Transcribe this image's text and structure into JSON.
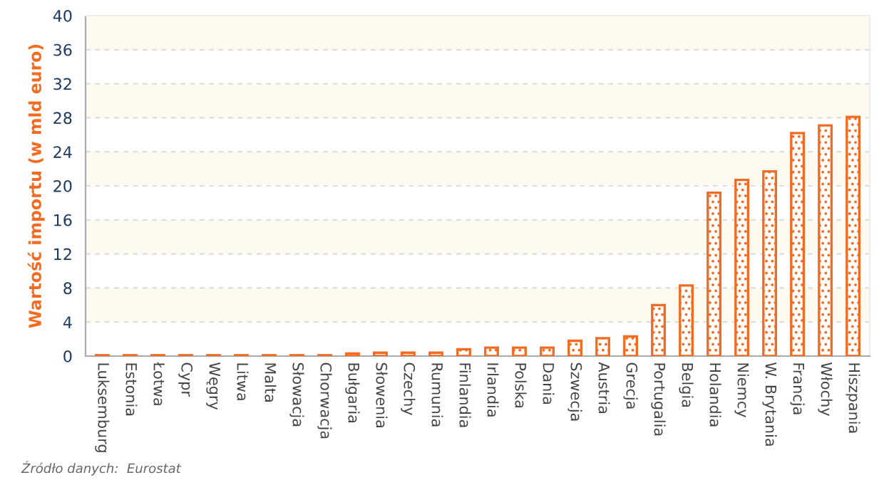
{
  "chart_data": {
    "type": "bar",
    "ylabel": "Wartość importu (w mld euro)",
    "categories": [
      "Luksemburg",
      "Estonia",
      "Łotwa",
      "Cypr",
      "Węgry",
      "Litwa",
      "Malta",
      "Słowacja",
      "Chorwacja",
      "Bułgaria",
      "Słowenia",
      "Czechy",
      "Rumunia",
      "Finlandia",
      "Irlandia",
      "Polska",
      "Dania",
      "Szwecja",
      "Austria",
      "Grecja",
      "Portugalia",
      "Belgia",
      "Holandia",
      "Niemcy",
      "W. Brytania",
      "Francja",
      "Włochy",
      "Hiszpania"
    ],
    "values": [
      0.1,
      0.1,
      0.1,
      0.1,
      0.1,
      0.1,
      0.1,
      0.1,
      0.1,
      0.3,
      0.4,
      0.4,
      0.4,
      0.8,
      1.0,
      1.0,
      1.0,
      1.8,
      2.1,
      2.3,
      6.0,
      8.3,
      19.2,
      20.7,
      21.7,
      26.2,
      27.1,
      28.1
    ],
    "color": "#f26b21",
    "ylim": [
      0,
      40
    ],
    "yticks": [
      0,
      4,
      8,
      12,
      16,
      20,
      24,
      28,
      32,
      36,
      40
    ],
    "grid": "y",
    "annotations": [
      "Źródło danych:  Eurostat"
    ]
  }
}
